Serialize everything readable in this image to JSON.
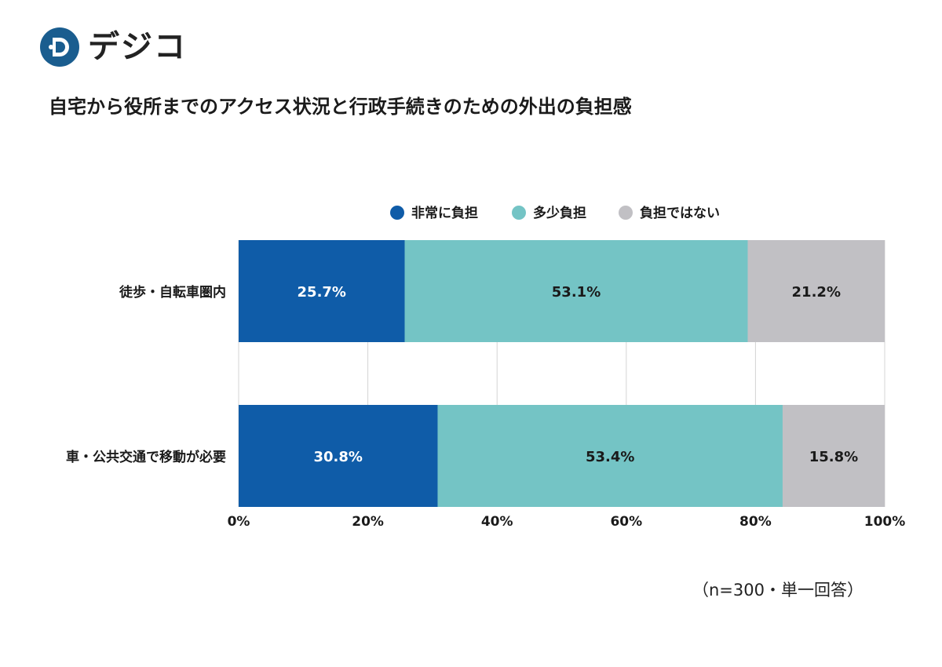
{
  "brand": {
    "name": "デジコ",
    "color": "#1a5d8f"
  },
  "colors": {
    "very": "#0f5ca8",
    "somewhat": "#74c4c5",
    "not": "#c1c0c4",
    "grid": "#d4d4d4"
  },
  "note": "（n=300・単一回答）",
  "chart_data": {
    "type": "bar",
    "orientation": "horizontal-stacked-100",
    "title": "自宅から役所までのアクセス状況と行政手続きのための外出の負担感",
    "categories": [
      "徒歩・自転車圏内",
      "車・公共交通で移動が必要"
    ],
    "series": [
      {
        "name": "非常に負担",
        "values": [
          25.7,
          30.8
        ],
        "labels": [
          "25.7%",
          "30.8%"
        ],
        "color": "#0f5ca8",
        "label_color": "#ffffff"
      },
      {
        "name": "多少負担",
        "values": [
          53.1,
          53.4
        ],
        "labels": [
          "53.1%",
          "53.4%"
        ],
        "color": "#74c4c5",
        "label_color": "#1a1a1a"
      },
      {
        "name": "負担ではない",
        "values": [
          21.2,
          15.8
        ],
        "labels": [
          "21.2%",
          "15.8%"
        ],
        "color": "#c1c0c4",
        "label_color": "#1a1a1a"
      }
    ],
    "xlim": [
      0,
      100
    ],
    "xticks": [
      0,
      20,
      40,
      60,
      80,
      100
    ],
    "xtick_labels": [
      "0%",
      "20%",
      "40%",
      "60%",
      "80%",
      "100%"
    ],
    "legend_position": "top",
    "grid": true
  }
}
